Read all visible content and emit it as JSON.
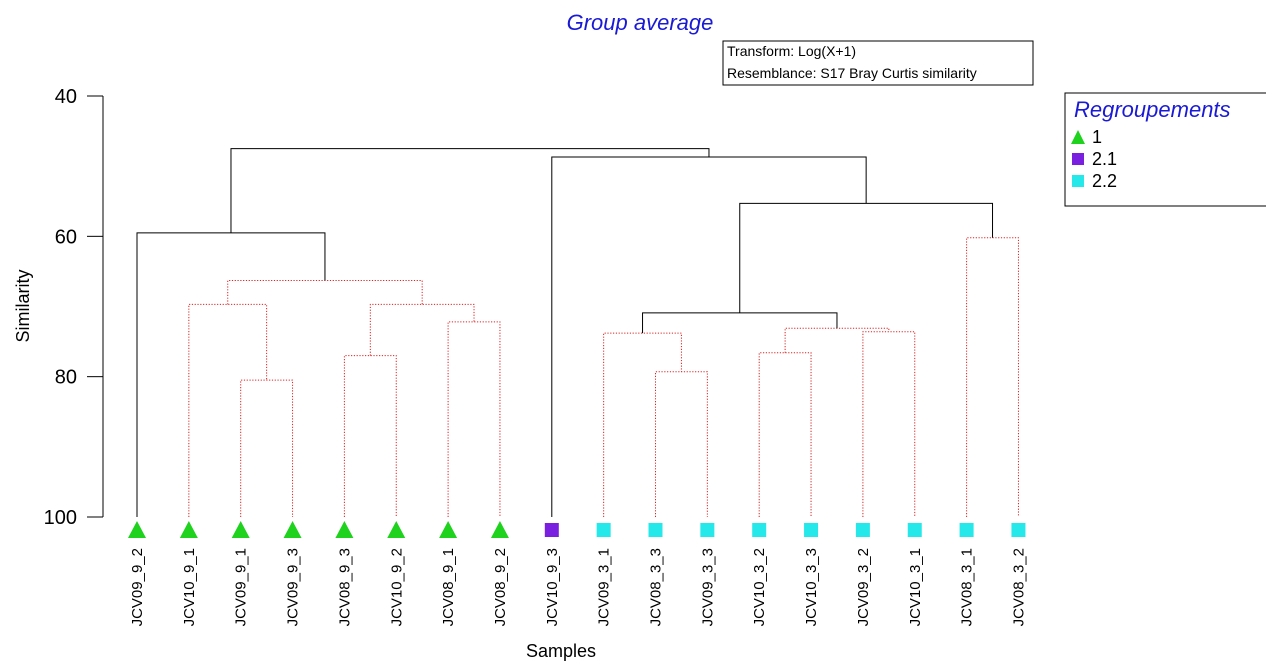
{
  "chart_data": {
    "type": "dendrogram",
    "title": "Group average",
    "xlabel": "Samples",
    "ylabel": "Similarity",
    "ylim": [
      40,
      100
    ],
    "y_ticks": [
      "40",
      "60",
      "80",
      "100"
    ],
    "annotation_lines": [
      "Transform: Log(X+1)",
      "Resemblance: S17 Bray Curtis similarity"
    ],
    "legend": {
      "title": "Regroupements",
      "placement": "top-right",
      "entries": [
        {
          "label": "1",
          "marker": "triangle",
          "color": "#1ed21e"
        },
        {
          "label": "2.1",
          "marker": "square",
          "color": "#7a1fe0"
        },
        {
          "label": "2.2",
          "marker": "square",
          "color": "#25e8ea"
        }
      ]
    },
    "samples": [
      {
        "label": "JCV09_9_2",
        "group": "1"
      },
      {
        "label": "JCV10_9_1",
        "group": "1"
      },
      {
        "label": "JCV09_9_1",
        "group": "1"
      },
      {
        "label": "JCV09_9_3",
        "group": "1"
      },
      {
        "label": "JCV08_9_3",
        "group": "1"
      },
      {
        "label": "JCV10_9_2",
        "group": "1"
      },
      {
        "label": "JCV08_9_1",
        "group": "1"
      },
      {
        "label": "JCV08_9_2",
        "group": "1"
      },
      {
        "label": "JCV10_9_3",
        "group": "2.1"
      },
      {
        "label": "JCV09_3_1",
        "group": "2.2"
      },
      {
        "label": "JCV08_3_3",
        "group": "2.2"
      },
      {
        "label": "JCV09_3_3",
        "group": "2.2"
      },
      {
        "label": "JCV10_3_2",
        "group": "2.2"
      },
      {
        "label": "JCV10_3_3",
        "group": "2.2"
      },
      {
        "label": "JCV09_3_2",
        "group": "2.2"
      },
      {
        "label": "JCV10_3_1",
        "group": "2.2"
      },
      {
        "label": "JCV08_3_1",
        "group": "2.2"
      },
      {
        "label": "JCV08_3_2",
        "group": "2.2"
      }
    ],
    "merges": [
      {
        "left": 2,
        "right": 3,
        "similarity": 80.5,
        "line": "dotted"
      },
      {
        "left": 1,
        "right": 18,
        "similarity": 69.7,
        "line": "dotted"
      },
      {
        "left": 4,
        "right": 5,
        "similarity": 77.0,
        "line": "dotted"
      },
      {
        "left": 6,
        "right": 7,
        "similarity": 72.2,
        "line": "dotted"
      },
      {
        "left": 20,
        "right": 21,
        "similarity": 69.7,
        "line": "dotted"
      },
      {
        "left": 19,
        "right": 22,
        "similarity": 66.3,
        "line": "dotted"
      },
      {
        "left": 0,
        "right": 23,
        "similarity": 59.5,
        "line": "solid"
      },
      {
        "left": 10,
        "right": 11,
        "similarity": 79.3,
        "line": "dotted"
      },
      {
        "left": 9,
        "right": 25,
        "similarity": 73.8,
        "line": "dotted"
      },
      {
        "left": 12,
        "right": 13,
        "similarity": 76.6,
        "line": "dotted"
      },
      {
        "left": 14,
        "right": 15,
        "similarity": 73.6,
        "line": "dotted"
      },
      {
        "left": 27,
        "right": 28,
        "similarity": 73.1,
        "line": "dotted"
      },
      {
        "left": 26,
        "right": 29,
        "similarity": 70.9,
        "line": "solid"
      },
      {
        "left": 16,
        "right": 17,
        "similarity": 60.2,
        "line": "dotted"
      },
      {
        "left": 30,
        "right": 31,
        "similarity": 55.3,
        "line": "solid"
      },
      {
        "left": 8,
        "right": 32,
        "similarity": 48.7,
        "line": "solid"
      },
      {
        "left": 24,
        "right": 33,
        "similarity": 47.5,
        "line": "solid"
      }
    ]
  }
}
